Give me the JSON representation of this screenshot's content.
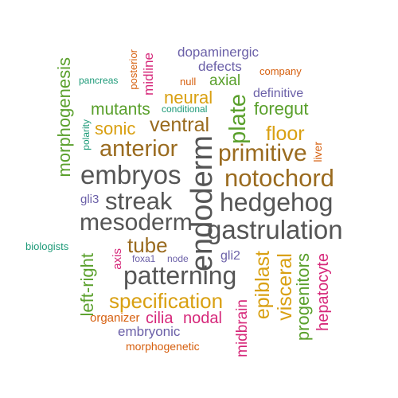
{
  "colors": {
    "gray": "#555555",
    "brown": "#9a6b1f",
    "green": "#5aa02c",
    "purple": "#6b60a8",
    "magenta": "#d6287a",
    "orange": "#d65f0e",
    "gold": "#d9a012",
    "teal": "#1d9a78"
  },
  "words": [
    {
      "text": "dopaminergic",
      "color": "#6b60a8"
    },
    {
      "text": "company",
      "color": "#d65f0e"
    },
    {
      "text": "defects",
      "color": "#6b60a8"
    },
    {
      "text": "posterior",
      "color": "#d65f0e"
    },
    {
      "text": "midline",
      "color": "#d6287a"
    },
    {
      "text": "null",
      "color": "#d65f0e"
    },
    {
      "text": "axial",
      "color": "#5aa02c"
    },
    {
      "text": "pancreas",
      "color": "#1d9a78"
    },
    {
      "text": "definitive",
      "color": "#6b60a8"
    },
    {
      "text": "neural",
      "color": "#d9a012"
    },
    {
      "text": "foregut",
      "color": "#5aa02c"
    },
    {
      "text": "mutants",
      "color": "#5aa02c"
    },
    {
      "text": "conditional",
      "color": "#1d9a78"
    },
    {
      "text": "plate",
      "color": "#5aa02c"
    },
    {
      "text": "morphogenesis",
      "color": "#5aa02c"
    },
    {
      "text": "ventral",
      "color": "#9a6b1f"
    },
    {
      "text": "sonic",
      "color": "#d9a012"
    },
    {
      "text": "polarity",
      "color": "#1d9a78"
    },
    {
      "text": "floor",
      "color": "#d9a012"
    },
    {
      "text": "anterior",
      "color": "#9a6b1f"
    },
    {
      "text": "primitive",
      "color": "#9a6b1f"
    },
    {
      "text": "liver",
      "color": "#d65f0e"
    },
    {
      "text": "embryos",
      "color": "#555555"
    },
    {
      "text": "endoderm",
      "color": "#555555"
    },
    {
      "text": "notochord",
      "color": "#9a6b1f"
    },
    {
      "text": "gli3",
      "color": "#6b60a8"
    },
    {
      "text": "streak",
      "color": "#555555"
    },
    {
      "text": "hedgehog",
      "color": "#555555"
    },
    {
      "text": "mesoderm",
      "color": "#555555"
    },
    {
      "text": "gastrulation",
      "color": "#555555"
    },
    {
      "text": "biologists",
      "color": "#1d9a78"
    },
    {
      "text": "tube",
      "color": "#9a6b1f"
    },
    {
      "text": "axis",
      "color": "#d6287a"
    },
    {
      "text": "foxa1",
      "color": "#6b60a8"
    },
    {
      "text": "node",
      "color": "#6b60a8"
    },
    {
      "text": "gli2",
      "color": "#6b60a8"
    },
    {
      "text": "left-right",
      "color": "#5aa02c"
    },
    {
      "text": "epiblast",
      "color": "#d9a012"
    },
    {
      "text": "visceral",
      "color": "#d9a012"
    },
    {
      "text": "progenitors",
      "color": "#5aa02c"
    },
    {
      "text": "hepatocyte",
      "color": "#d6287a"
    },
    {
      "text": "patterning",
      "color": "#555555"
    },
    {
      "text": "specification",
      "color": "#d9a012"
    },
    {
      "text": "midbrain",
      "color": "#d6287a"
    },
    {
      "text": "organizer",
      "color": "#d65f0e"
    },
    {
      "text": "cilia",
      "color": "#d6287a"
    },
    {
      "text": "nodal",
      "color": "#d6287a"
    },
    {
      "text": "embryonic",
      "color": "#6b60a8"
    },
    {
      "text": "morphogenetic",
      "color": "#d65f0e"
    }
  ]
}
